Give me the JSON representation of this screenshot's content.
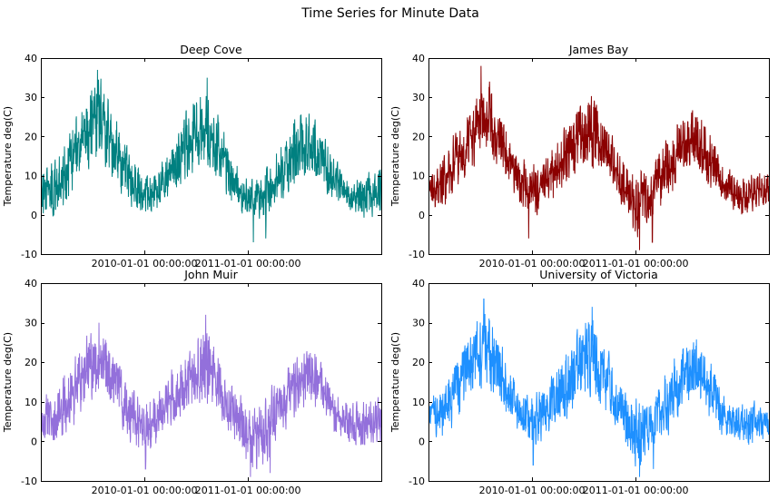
{
  "figure": {
    "suptitle": "Time Series for Minute Data"
  },
  "chart_data": [
    {
      "type": "line",
      "title": "Deep Cove",
      "ylabel": "Temperature deg(C)",
      "xlabel": "",
      "xlim": [
        "2009-01-01",
        "2012-04-15"
      ],
      "ylim": [
        -10,
        40
      ],
      "yticks": [
        -10,
        0,
        10,
        20,
        30,
        40
      ],
      "xticks": [
        {
          "value": "2010-01-01",
          "label": "2010-01-01 00:00:00"
        },
        {
          "value": "2011-01-01",
          "label": "2011-01-01 00:00:00"
        }
      ],
      "grid": false,
      "color": "#008080",
      "envelope": {
        "dates": [
          "2009-01-01",
          "2009-03-01",
          "2009-05-01",
          "2009-06-15",
          "2009-08-01",
          "2009-09-15",
          "2009-11-01",
          "2010-01-01",
          "2010-03-01",
          "2010-05-01",
          "2010-06-15",
          "2010-08-01",
          "2010-09-15",
          "2010-11-01",
          "2011-01-01",
          "2011-03-01",
          "2011-05-01",
          "2011-06-15",
          "2011-08-01",
          "2011-09-15",
          "2011-11-01",
          "2012-01-01",
          "2012-03-01",
          "2012-04-15"
        ],
        "low": [
          0,
          -3,
          5,
          10,
          11,
          8,
          2,
          -1,
          0,
          5,
          8,
          10,
          7,
          2,
          -2,
          -2,
          2,
          6,
          9,
          7,
          2,
          0,
          -1,
          0
        ],
        "high": [
          12,
          16,
          26,
          34,
          37,
          27,
          18,
          12,
          14,
          24,
          30,
          35,
          26,
          16,
          10,
          12,
          20,
          27,
          28,
          24,
          15,
          10,
          12,
          13
        ],
        "spikes": [
          {
            "date": "2009-07-20",
            "value": 37
          },
          {
            "date": "2010-08-10",
            "value": 35
          },
          {
            "date": "2011-01-20",
            "value": -7
          },
          {
            "date": "2011-03-05",
            "value": -6
          }
        ]
      }
    },
    {
      "type": "line",
      "title": "James Bay",
      "ylabel": "Temperature deg(C)",
      "xlabel": "",
      "xlim": [
        "2009-01-01",
        "2012-04-15"
      ],
      "ylim": [
        -10,
        40
      ],
      "yticks": [
        -10,
        0,
        10,
        20,
        30,
        40
      ],
      "xticks": [
        {
          "value": "2010-01-01",
          "label": "2010-01-01 00:00:00"
        },
        {
          "value": "2011-01-01",
          "label": "2011-01-01 00:00:00"
        }
      ],
      "grid": false,
      "color": "#8b0000",
      "envelope": {
        "dates": [
          "2009-01-01",
          "2009-03-01",
          "2009-05-01",
          "2009-06-15",
          "2009-08-01",
          "2009-09-15",
          "2009-11-01",
          "2010-01-01",
          "2010-03-01",
          "2010-05-01",
          "2010-06-15",
          "2010-08-01",
          "2010-09-15",
          "2010-11-01",
          "2011-01-01",
          "2011-03-01",
          "2011-05-01",
          "2011-06-15",
          "2011-08-01",
          "2011-09-15",
          "2011-11-01",
          "2012-01-01",
          "2012-03-01",
          "2012-04-15"
        ],
        "low": [
          2,
          0,
          7,
          12,
          13,
          10,
          3,
          -3,
          2,
          6,
          9,
          11,
          8,
          3,
          -7,
          -2,
          3,
          8,
          10,
          7,
          2,
          0,
          0,
          2
        ],
        "high": [
          13,
          16,
          25,
          30,
          38,
          27,
          17,
          14,
          16,
          25,
          30,
          33,
          25,
          17,
          12,
          14,
          22,
          27,
          28,
          24,
          14,
          10,
          12,
          12
        ],
        "spikes": [
          {
            "date": "2009-07-05",
            "value": 38
          },
          {
            "date": "2009-12-20",
            "value": -6
          },
          {
            "date": "2011-01-15",
            "value": -9
          },
          {
            "date": "2011-03-01",
            "value": -7
          }
        ]
      }
    },
    {
      "type": "line",
      "title": "John Muir",
      "ylabel": "Temperature deg(C)",
      "xlabel": "",
      "xlim": [
        "2009-01-01",
        "2012-04-15"
      ],
      "ylim": [
        -10,
        40
      ],
      "yticks": [
        -10,
        0,
        10,
        20,
        30,
        40
      ],
      "xticks": [
        {
          "value": "2010-01-01",
          "label": "2010-01-01 00:00:00"
        },
        {
          "value": "2011-01-01",
          "label": "2011-01-01 00:00:00"
        }
      ],
      "grid": false,
      "color": "#9370db",
      "envelope": {
        "dates": [
          "2009-01-01",
          "2009-03-01",
          "2009-05-01",
          "2009-06-15",
          "2009-08-01",
          "2009-09-15",
          "2009-11-01",
          "2010-01-01",
          "2010-03-01",
          "2010-05-01",
          "2010-06-15",
          "2010-08-01",
          "2010-09-15",
          "2010-11-01",
          "2011-01-01",
          "2011-03-01",
          "2011-05-01",
          "2011-06-15",
          "2011-08-01",
          "2011-09-15",
          "2011-11-01",
          "2012-01-01",
          "2012-03-01",
          "2012-04-15"
        ],
        "low": [
          0,
          -3,
          4,
          8,
          9,
          7,
          0,
          -6,
          0,
          4,
          7,
          8,
          6,
          0,
          -8,
          -7,
          1,
          5,
          8,
          6,
          0,
          -2,
          -3,
          0
        ],
        "high": [
          12,
          15,
          23,
          28,
          30,
          24,
          16,
          12,
          14,
          22,
          25,
          32,
          23,
          15,
          10,
          12,
          19,
          23,
          25,
          22,
          13,
          11,
          12,
          11
        ],
        "spikes": [
          {
            "date": "2009-07-25",
            "value": 30
          },
          {
            "date": "2010-08-05",
            "value": 32
          },
          {
            "date": "2010-01-05",
            "value": -7
          },
          {
            "date": "2011-01-10",
            "value": -9
          },
          {
            "date": "2011-03-20",
            "value": -8
          }
        ]
      }
    },
    {
      "type": "line",
      "title": "University of Victoria",
      "ylabel": "Temperature deg(C)",
      "xlabel": "",
      "xlim": [
        "2009-01-01",
        "2012-04-15"
      ],
      "ylim": [
        -10,
        40
      ],
      "yticks": [
        -10,
        0,
        10,
        20,
        30,
        40
      ],
      "xticks": [
        {
          "value": "2010-01-01",
          "label": "2010-01-01 00:00:00"
        },
        {
          "value": "2011-01-01",
          "label": "2011-01-01 00:00:00"
        }
      ],
      "grid": false,
      "color": "#1e90ff",
      "envelope": {
        "dates": [
          "2009-01-01",
          "2009-03-01",
          "2009-05-01",
          "2009-06-15",
          "2009-08-01",
          "2009-09-15",
          "2009-11-01",
          "2010-01-01",
          "2010-03-01",
          "2010-05-01",
          "2010-06-15",
          "2010-08-01",
          "2010-09-15",
          "2010-11-01",
          "2011-01-01",
          "2011-03-01",
          "2011-05-01",
          "2011-06-15",
          "2011-08-01",
          "2011-09-15",
          "2011-11-01",
          "2012-01-01",
          "2012-03-01",
          "2012-04-15"
        ],
        "low": [
          1,
          -1,
          6,
          11,
          12,
          9,
          2,
          -3,
          1,
          5,
          8,
          10,
          7,
          2,
          -8,
          -4,
          2,
          7,
          9,
          6,
          1,
          -1,
          -2,
          1
        ],
        "high": [
          12,
          16,
          26,
          32,
          36,
          26,
          17,
          13,
          15,
          24,
          30,
          34,
          25,
          16,
          11,
          13,
          21,
          26,
          28,
          23,
          14,
          10,
          11,
          12
        ],
        "spikes": [
          {
            "date": "2009-07-15",
            "value": 36
          },
          {
            "date": "2010-08-01",
            "value": 34
          },
          {
            "date": "2010-01-05",
            "value": -6
          },
          {
            "date": "2011-01-15",
            "value": -9
          },
          {
            "date": "2011-03-05",
            "value": -7
          }
        ]
      }
    }
  ]
}
